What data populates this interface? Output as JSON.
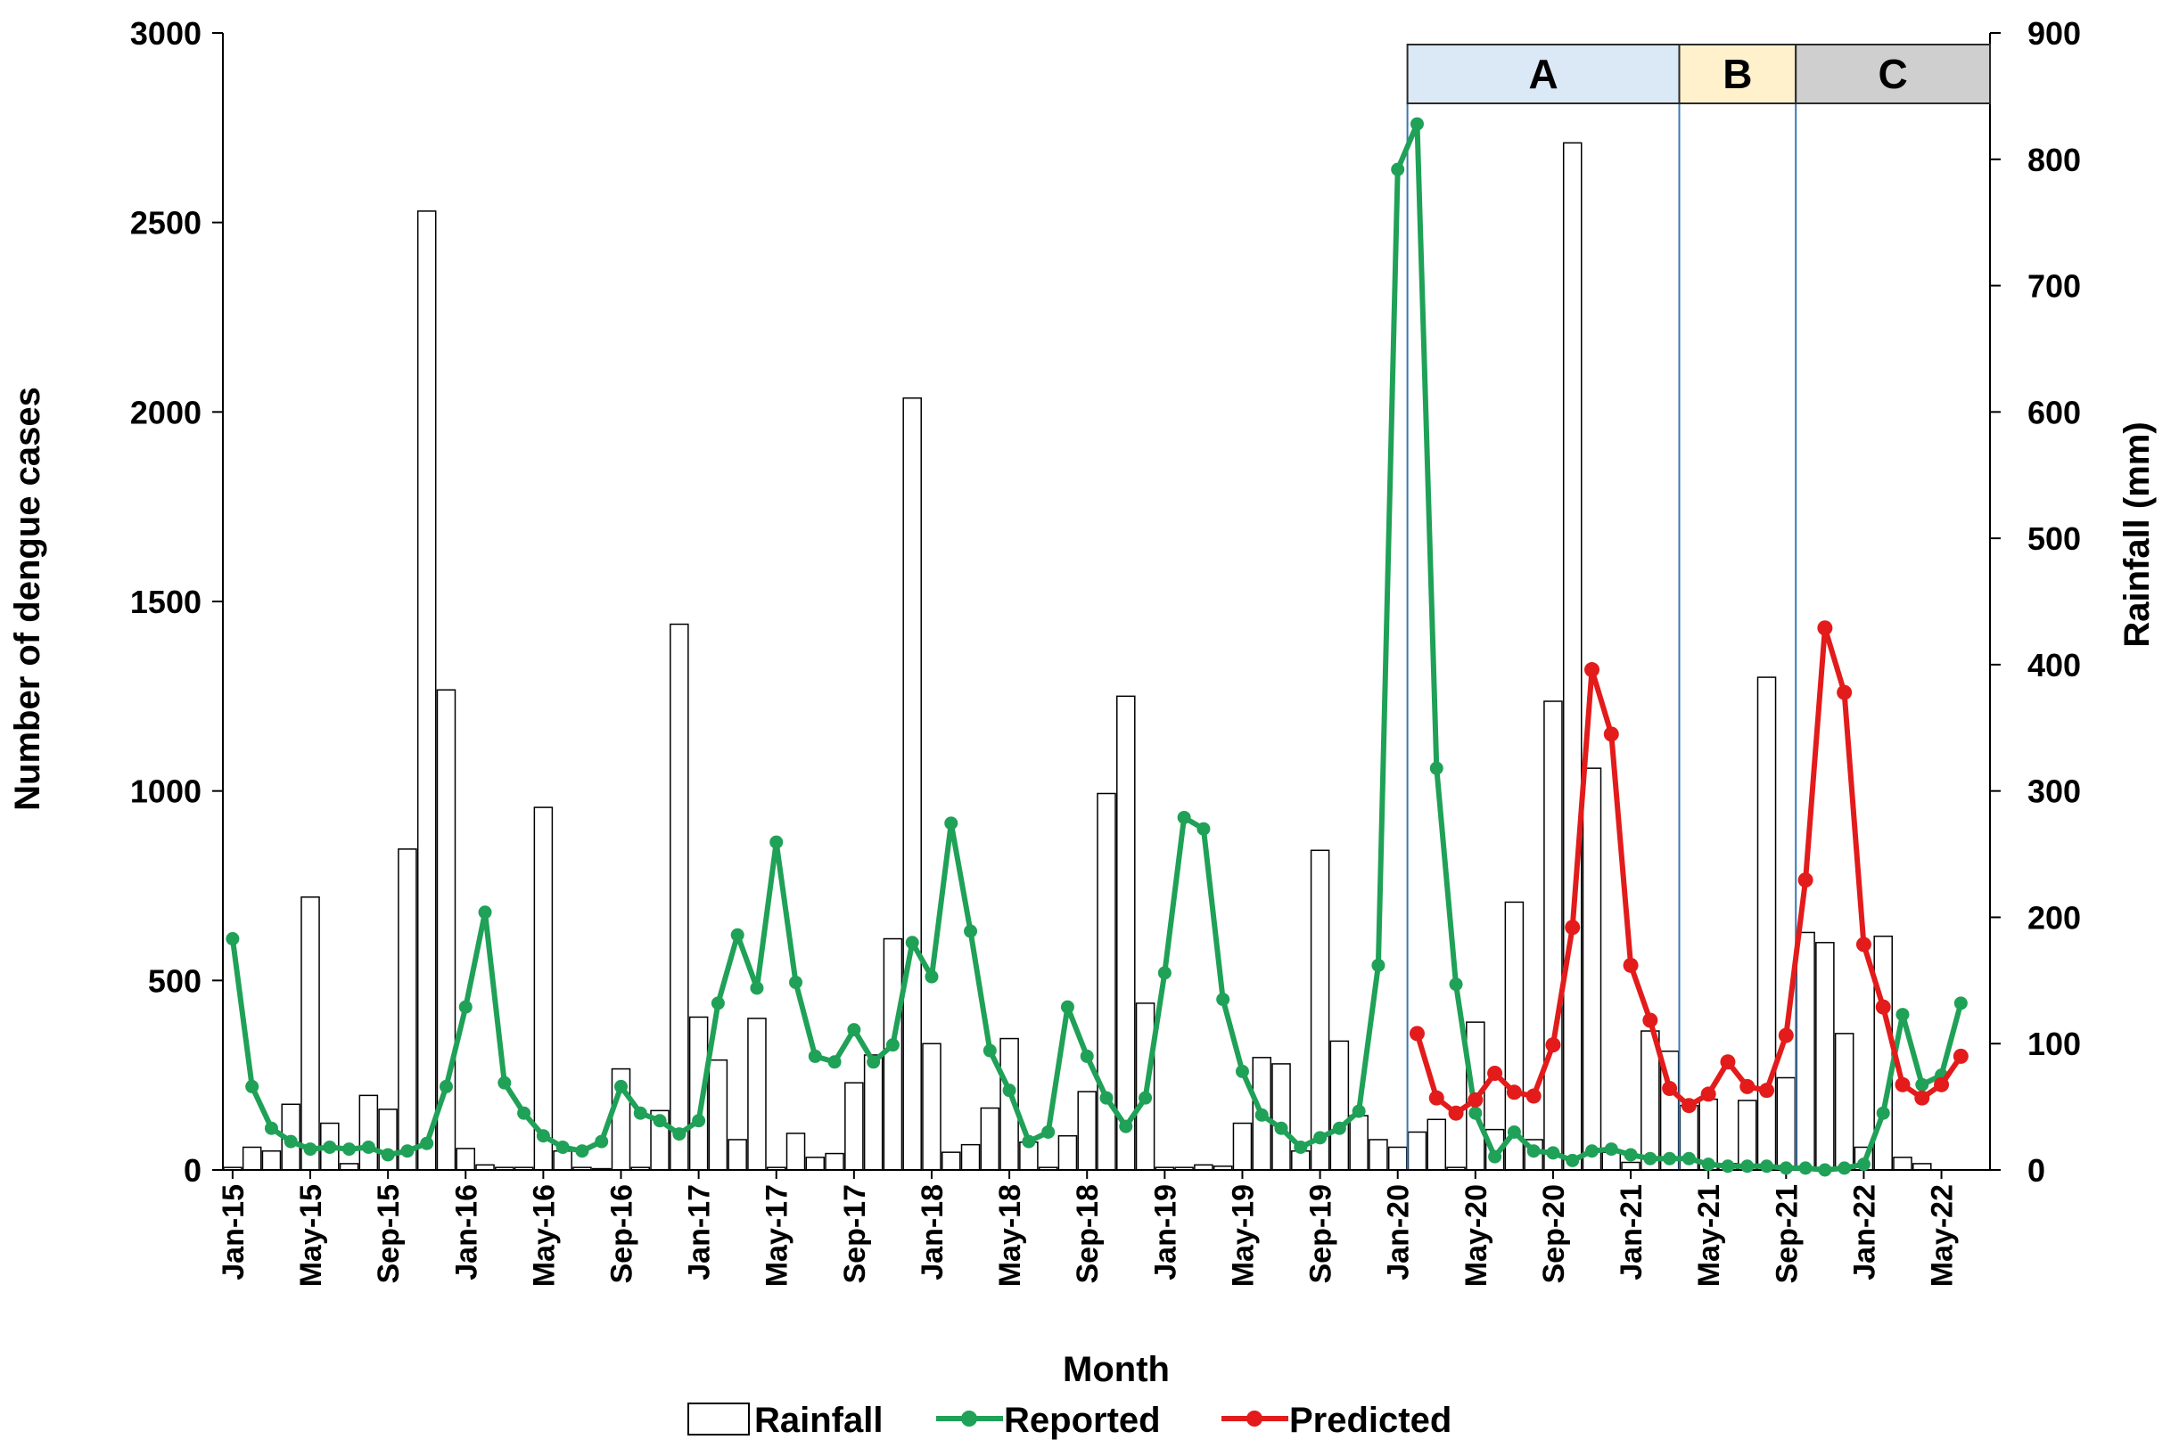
{
  "chart_data": {
    "type": "bar+line",
    "x_label": "Month",
    "y_left_label": "Number of  dengue cases",
    "y_right_label": "Rainfall (mm)",
    "y_left_range": [
      0,
      3000
    ],
    "y_left_ticks": [
      "0",
      "500",
      "1000",
      "1500",
      "2000",
      "2500",
      "3000"
    ],
    "y_right_range": [
      0,
      900
    ],
    "y_right_ticks": [
      "0",
      "100",
      "200",
      "300",
      "400",
      "500",
      "600",
      "700",
      "800",
      "900"
    ],
    "x_tick_labels": [
      "Jan-15",
      "May-15",
      "Sep-15",
      "Jan-16",
      "May-16",
      "Sep-16",
      "Jan-17",
      "May-17",
      "Sep-17",
      "Jan-18",
      "May-18",
      "Sep-18",
      "Jan-19",
      "May-19",
      "Sep-19",
      "Jan-20",
      "May-20",
      "Sep-20",
      "Jan-21",
      "May-21",
      "Sep-21",
      "Jan-22",
      "May-22"
    ],
    "months": [
      "Jan-15",
      "Feb-15",
      "Mar-15",
      "Apr-15",
      "May-15",
      "Jun-15",
      "Jul-15",
      "Aug-15",
      "Sep-15",
      "Oct-15",
      "Nov-15",
      "Dec-15",
      "Jan-16",
      "Feb-16",
      "Mar-16",
      "Apr-16",
      "May-16",
      "Jun-16",
      "Jul-16",
      "Aug-16",
      "Sep-16",
      "Oct-16",
      "Nov-16",
      "Dec-16",
      "Jan-17",
      "Feb-17",
      "Mar-17",
      "Apr-17",
      "May-17",
      "Jun-17",
      "Jul-17",
      "Aug-17",
      "Sep-17",
      "Oct-17",
      "Nov-17",
      "Dec-17",
      "Jan-18",
      "Feb-18",
      "Mar-18",
      "Apr-18",
      "May-18",
      "Jun-18",
      "Jul-18",
      "Aug-18",
      "Sep-18",
      "Oct-18",
      "Nov-18",
      "Dec-18",
      "Jan-19",
      "Feb-19",
      "Mar-19",
      "Apr-19",
      "May-19",
      "Jun-19",
      "Jul-19",
      "Aug-19",
      "Sep-19",
      "Oct-19",
      "Nov-19",
      "Dec-19",
      "Jan-20",
      "Feb-20",
      "Mar-20",
      "Apr-20",
      "May-20",
      "Jun-20",
      "Jul-20",
      "Aug-20",
      "Sep-20",
      "Oct-20",
      "Nov-20",
      "Dec-20",
      "Jan-21",
      "Feb-21",
      "Mar-21",
      "Apr-21",
      "May-21",
      "Jun-21",
      "Jul-21",
      "Aug-21",
      "Sep-21",
      "Oct-21",
      "Nov-21",
      "Dec-21",
      "Jan-22",
      "Feb-22",
      "Mar-22",
      "Apr-22",
      "May-22",
      "Jun-22",
      "Jul-22"
    ],
    "series": [
      {
        "name": "Rainfall",
        "type": "bar",
        "axis": "right",
        "color": "#ffffff",
        "values": [
          2,
          18,
          15,
          52,
          216,
          37,
          5,
          59,
          48,
          254,
          759,
          380,
          17,
          4,
          2,
          2,
          287,
          15,
          2,
          1,
          80,
          2,
          47,
          432,
          121,
          87,
          24,
          120,
          2,
          29,
          10,
          13,
          69,
          91,
          183,
          611,
          100,
          14,
          20,
          49,
          104,
          22,
          2,
          27,
          62,
          298,
          375,
          132,
          2,
          2,
          4,
          3,
          37,
          89,
          84,
          15,
          253,
          102,
          43,
          24,
          18,
          30,
          40,
          2,
          117,
          32,
          212,
          24,
          371,
          813,
          318,
          14,
          6,
          110,
          94,
          51,
          56,
          5,
          55,
          390,
          73,
          188,
          180,
          108,
          18,
          185,
          10,
          5,
          0,
          0,
          0
        ]
      },
      {
        "name": "Reported",
        "type": "line",
        "axis": "left",
        "color": "#1fa157",
        "values": [
          610,
          220,
          110,
          75,
          55,
          60,
          55,
          60,
          40,
          50,
          70,
          220,
          430,
          680,
          230,
          150,
          90,
          60,
          50,
          75,
          220,
          150,
          130,
          95,
          130,
          440,
          620,
          480,
          865,
          495,
          300,
          285,
          370,
          285,
          330,
          600,
          510,
          915,
          630,
          315,
          210,
          75,
          100,
          430,
          300,
          190,
          115,
          190,
          520,
          930,
          900,
          450,
          260,
          145,
          110,
          60,
          85,
          110,
          155,
          540,
          2640,
          2760,
          1060,
          490,
          150,
          35,
          100,
          50,
          45,
          25,
          50,
          55,
          40,
          30,
          30,
          30,
          15,
          10,
          10,
          10,
          5,
          5,
          0,
          5,
          15,
          150,
          410,
          225,
          250,
          440
        ]
      },
      {
        "name": "Predicted",
        "type": "line",
        "axis": "left",
        "color": "#e31b1b",
        "values": [
          360,
          190,
          150,
          185,
          255,
          205,
          195,
          330,
          640,
          1320,
          1150,
          540,
          395,
          215,
          170,
          200,
          285,
          220,
          210,
          355,
          765,
          1430,
          1260,
          595,
          430,
          225,
          190,
          225,
          300
        ]
      }
    ],
    "phases": [
      {
        "label": "A",
        "color": "#dbe8f5"
      },
      {
        "label": "B",
        "color": "#fff1cc"
      },
      {
        "label": "C",
        "color": "#cfcfcf"
      }
    ],
    "legend": [
      "Rainfall",
      "Reported",
      "Predicted"
    ]
  }
}
